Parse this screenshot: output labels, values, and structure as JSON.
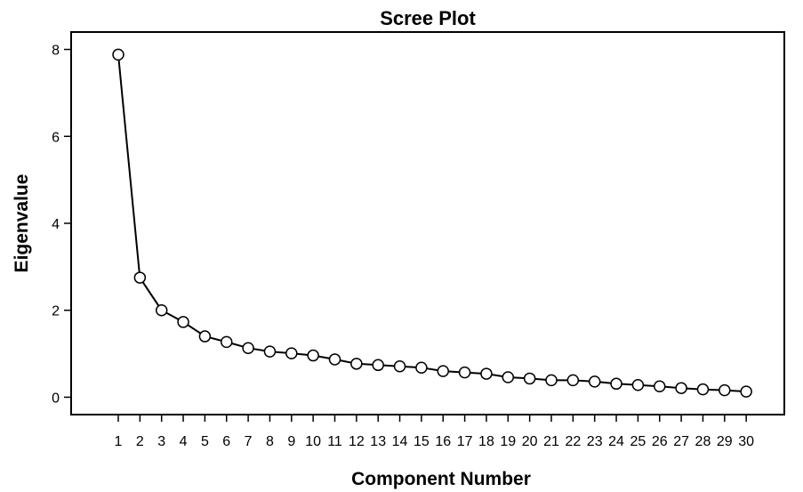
{
  "chart_data": {
    "type": "line",
    "title": "Scree Plot",
    "xlabel": "Component Number",
    "ylabel": "Eigenvalue",
    "x": [
      1,
      2,
      3,
      4,
      5,
      6,
      7,
      8,
      9,
      10,
      11,
      12,
      13,
      14,
      15,
      16,
      17,
      18,
      19,
      20,
      21,
      22,
      23,
      24,
      25,
      26,
      27,
      28,
      29,
      30
    ],
    "y": [
      7.88,
      2.75,
      2.0,
      1.73,
      1.4,
      1.27,
      1.13,
      1.05,
      1.01,
      0.96,
      0.87,
      0.77,
      0.74,
      0.71,
      0.68,
      0.6,
      0.57,
      0.54,
      0.46,
      0.43,
      0.39,
      0.39,
      0.36,
      0.31,
      0.28,
      0.25,
      0.21,
      0.18,
      0.16,
      0.13
    ],
    "xticks": [
      "1",
      "2",
      "3",
      "4",
      "5",
      "6",
      "7",
      "8",
      "9",
      "10",
      "11",
      "12",
      "13",
      "14",
      "15",
      "16",
      "17",
      "18",
      "19",
      "20",
      "21",
      "22",
      "23",
      "24",
      "25",
      "26",
      "27",
      "28",
      "29",
      "30"
    ],
    "yticks": [
      "0",
      "2",
      "4",
      "6",
      "8"
    ],
    "ylim": [
      -0.4,
      8.4
    ],
    "grid": false,
    "marker": "open-circle",
    "line_color": "#000000"
  }
}
